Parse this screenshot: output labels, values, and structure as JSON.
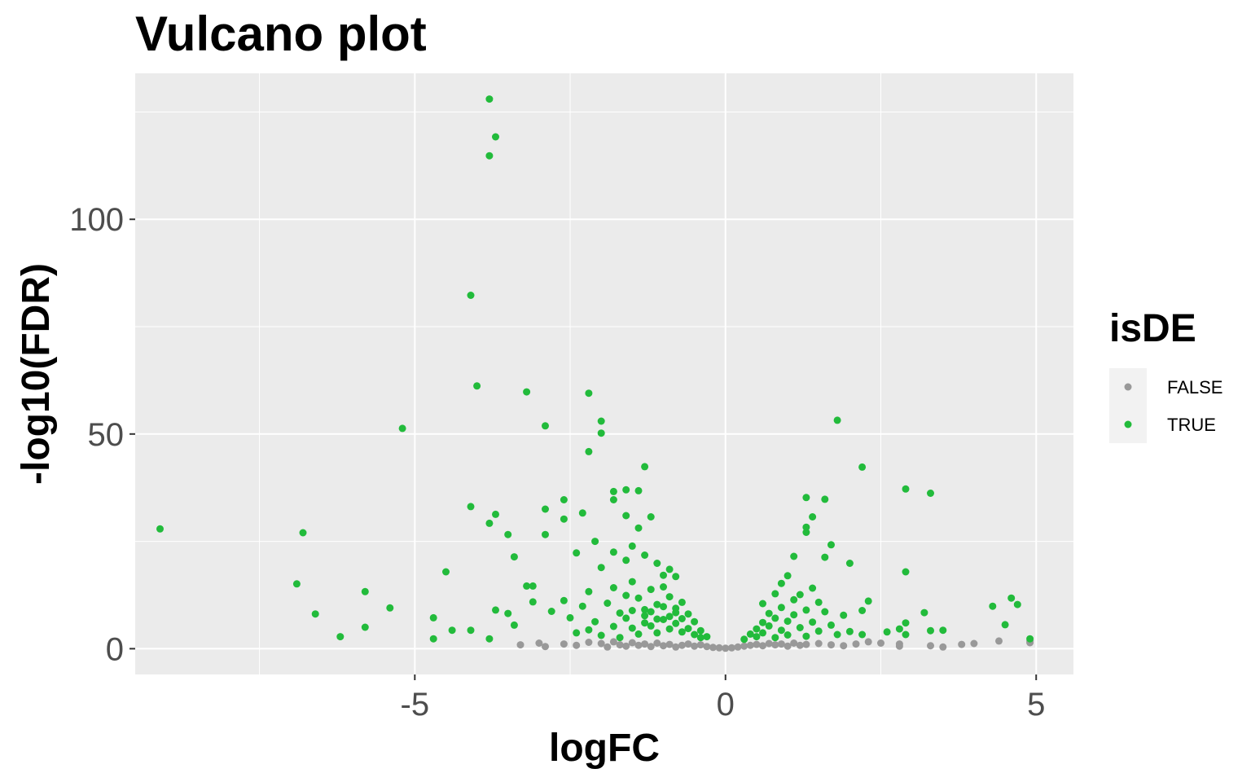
{
  "chart_data": {
    "type": "scatter",
    "title": "Vulcano plot",
    "xlabel": "logFC",
    "ylabel": "-log10(FDR)",
    "xlim": [
      -9.5,
      5.6
    ],
    "ylim": [
      -6,
      134
    ],
    "x_ticks": [
      -5,
      0,
      5
    ],
    "x_tick_labels": [
      "-5",
      "0",
      "5"
    ],
    "y_ticks": [
      0,
      50,
      100
    ],
    "y_tick_labels": [
      "0",
      "50",
      "100"
    ],
    "grid": true,
    "legend": {
      "title": "isDE",
      "placement": "right",
      "entries": [
        {
          "label": "FALSE",
          "color": "#999999"
        },
        {
          "label": "TRUE",
          "color": "#22bb3b"
        }
      ]
    },
    "colors": {
      "panel_background": "#ebebeb",
      "grid_major": "#ffffff",
      "false_points": "#999999",
      "true_points": "#22bb3b"
    },
    "series": [
      {
        "name": "FALSE",
        "color": "#999999",
        "points": [
          [
            -3.3,
            0.9
          ],
          [
            -3.0,
            1.3
          ],
          [
            -2.9,
            0.5
          ],
          [
            -2.6,
            1.1
          ],
          [
            -2.4,
            0.8
          ],
          [
            -2.2,
            1.5
          ],
          [
            -2.0,
            1.2
          ],
          [
            -1.9,
            0.4
          ],
          [
            -1.8,
            1.6
          ],
          [
            -1.7,
            0.9
          ],
          [
            -1.6,
            0.6
          ],
          [
            -1.5,
            1.4
          ],
          [
            -1.4,
            0.8
          ],
          [
            -1.3,
            1.1
          ],
          [
            -1.2,
            0.5
          ],
          [
            -1.1,
            1.3
          ],
          [
            -1.0,
            0.7
          ],
          [
            -0.9,
            1.0
          ],
          [
            -0.8,
            0.4
          ],
          [
            -0.7,
            0.8
          ],
          [
            -0.6,
            1.1
          ],
          [
            -0.5,
            0.6
          ],
          [
            -0.4,
            0.9
          ],
          [
            -0.3,
            0.5
          ],
          [
            -0.2,
            0.3
          ],
          [
            -0.1,
            0.2
          ],
          [
            0.0,
            0.1
          ],
          [
            0.1,
            0.2
          ],
          [
            0.2,
            0.4
          ],
          [
            0.3,
            0.6
          ],
          [
            0.4,
            0.8
          ],
          [
            0.5,
            1.0
          ],
          [
            0.6,
            0.7
          ],
          [
            0.7,
            1.2
          ],
          [
            0.8,
            0.9
          ],
          [
            0.9,
            1.1
          ],
          [
            1.0,
            0.6
          ],
          [
            1.1,
            1.3
          ],
          [
            1.2,
            0.8
          ],
          [
            1.3,
            1.0
          ],
          [
            1.5,
            1.2
          ],
          [
            1.7,
            0.9
          ],
          [
            1.9,
            0.7
          ],
          [
            2.1,
            1.1
          ],
          [
            2.3,
            1.6
          ],
          [
            2.5,
            1.3
          ],
          [
            2.8,
            0.6
          ],
          [
            2.8,
            1.1
          ],
          [
            3.3,
            0.7
          ],
          [
            3.5,
            0.4
          ],
          [
            3.8,
            1.0
          ],
          [
            4.0,
            1.2
          ],
          [
            4.4,
            1.8
          ],
          [
            4.9,
            1.8
          ],
          [
            4.9,
            1.4
          ]
        ]
      },
      {
        "name": "TRUE",
        "color": "#22bb3b",
        "points": [
          [
            -9.1,
            27.9
          ],
          [
            -6.8,
            27.0
          ],
          [
            -6.9,
            15.1
          ],
          [
            -6.6,
            8.1
          ],
          [
            -6.2,
            2.8
          ],
          [
            -5.8,
            5.0
          ],
          [
            -5.8,
            13.3
          ],
          [
            -5.4,
            9.5
          ],
          [
            -5.2,
            51.3
          ],
          [
            -4.7,
            2.3
          ],
          [
            -4.7,
            7.2
          ],
          [
            -4.5,
            17.9
          ],
          [
            -4.4,
            4.3
          ],
          [
            -4.1,
            82.3
          ],
          [
            -4.1,
            33.1
          ],
          [
            -4.0,
            61.2
          ],
          [
            -4.1,
            4.3
          ],
          [
            -3.8,
            128.0
          ],
          [
            -3.8,
            114.8
          ],
          [
            -3.8,
            29.2
          ],
          [
            -3.7,
            31.3
          ],
          [
            -3.7,
            119.2
          ],
          [
            -3.5,
            26.6
          ],
          [
            -3.4,
            21.4
          ],
          [
            -3.8,
            2.3
          ],
          [
            -3.7,
            9.0
          ],
          [
            -3.5,
            8.2
          ],
          [
            -3.4,
            5.5
          ],
          [
            -3.2,
            14.6
          ],
          [
            -3.1,
            10.9
          ],
          [
            -3.1,
            14.6
          ],
          [
            -3.2,
            59.8
          ],
          [
            -2.9,
            51.9
          ],
          [
            -2.9,
            26.6
          ],
          [
            -2.9,
            32.5
          ],
          [
            -2.6,
            34.7
          ],
          [
            -2.6,
            30.2
          ],
          [
            -2.2,
            59.5
          ],
          [
            -2.0,
            53.0
          ],
          [
            -2.0,
            50.2
          ],
          [
            -2.2,
            45.9
          ],
          [
            -1.8,
            36.6
          ],
          [
            -1.8,
            34.7
          ],
          [
            -1.6,
            37.0
          ],
          [
            -1.3,
            42.4
          ],
          [
            -1.4,
            36.8
          ],
          [
            -2.3,
            31.6
          ],
          [
            -2.1,
            25.0
          ],
          [
            -1.6,
            31.0
          ],
          [
            -1.4,
            28.1
          ],
          [
            -1.2,
            30.7
          ],
          [
            -2.4,
            22.3
          ],
          [
            -2.0,
            18.9
          ],
          [
            -1.8,
            22.5
          ],
          [
            -1.6,
            20.6
          ],
          [
            -1.5,
            23.9
          ],
          [
            -1.3,
            21.8
          ],
          [
            -1.1,
            19.9
          ],
          [
            -1.0,
            17.1
          ],
          [
            -0.9,
            18.5
          ],
          [
            -0.8,
            16.8
          ],
          [
            -2.8,
            8.7
          ],
          [
            -2.6,
            11.2
          ],
          [
            -2.5,
            7.2
          ],
          [
            -2.3,
            9.9
          ],
          [
            -2.2,
            13.3
          ],
          [
            -2.1,
            6.3
          ],
          [
            -1.9,
            10.6
          ],
          [
            -1.8,
            14.2
          ],
          [
            -1.7,
            8.3
          ],
          [
            -1.6,
            12.4
          ],
          [
            -1.5,
            15.6
          ],
          [
            -1.4,
            11.8
          ],
          [
            -1.3,
            9.1
          ],
          [
            -1.2,
            13.8
          ],
          [
            -1.1,
            10.3
          ],
          [
            -1.0,
            14.4
          ],
          [
            -0.9,
            12.1
          ],
          [
            -0.8,
            9.4
          ],
          [
            -0.7,
            10.8
          ],
          [
            -0.6,
            8.1
          ],
          [
            -0.5,
            6.3
          ],
          [
            -0.4,
            4.2
          ],
          [
            -0.3,
            2.8
          ],
          [
            -2.4,
            3.7
          ],
          [
            -2.2,
            4.4
          ],
          [
            -2.0,
            3.1
          ],
          [
            -1.8,
            5.2
          ],
          [
            -1.7,
            2.6
          ],
          [
            -1.5,
            4.8
          ],
          [
            -1.4,
            3.4
          ],
          [
            -1.3,
            6.0
          ],
          [
            -1.2,
            5.3
          ],
          [
            -1.1,
            3.7
          ],
          [
            -1.0,
            6.8
          ],
          [
            -0.9,
            4.6
          ],
          [
            -0.8,
            5.9
          ],
          [
            -0.7,
            3.9
          ],
          [
            -0.6,
            4.7
          ],
          [
            -0.5,
            3.3
          ],
          [
            -0.4,
            2.6
          ],
          [
            -1.6,
            7.1
          ],
          [
            -1.5,
            8.9
          ],
          [
            -1.3,
            7.7
          ],
          [
            -1.2,
            8.6
          ],
          [
            -1.1,
            6.9
          ],
          [
            -1.0,
            9.8
          ],
          [
            -0.9,
            7.5
          ],
          [
            -0.8,
            8.4
          ],
          [
            -0.7,
            7.0
          ],
          [
            0.3,
            2.2
          ],
          [
            0.4,
            3.4
          ],
          [
            0.5,
            4.6
          ],
          [
            0.5,
            2.8
          ],
          [
            0.6,
            6.1
          ],
          [
            0.6,
            3.7
          ],
          [
            0.7,
            8.2
          ],
          [
            0.7,
            5.3
          ],
          [
            0.8,
            2.6
          ],
          [
            0.8,
            7.1
          ],
          [
            0.9,
            4.3
          ],
          [
            0.9,
            9.6
          ],
          [
            1.0,
            6.4
          ],
          [
            1.0,
            3.2
          ],
          [
            1.1,
            11.4
          ],
          [
            1.1,
            7.9
          ],
          [
            1.2,
            4.9
          ],
          [
            1.2,
            12.6
          ],
          [
            1.3,
            9.0
          ],
          [
            1.3,
            2.9
          ],
          [
            1.4,
            6.2
          ],
          [
            1.4,
            14.1
          ],
          [
            1.5,
            10.8
          ],
          [
            1.5,
            4.1
          ],
          [
            1.6,
            21.3
          ],
          [
            1.6,
            8.6
          ],
          [
            1.7,
            24.2
          ],
          [
            1.7,
            5.5
          ],
          [
            1.8,
            3.3
          ],
          [
            1.9,
            7.8
          ],
          [
            2.0,
            19.9
          ],
          [
            2.0,
            4.0
          ],
          [
            2.2,
            8.9
          ],
          [
            2.3,
            11.1
          ],
          [
            2.2,
            3.3
          ],
          [
            1.8,
            53.2
          ],
          [
            2.2,
            42.3
          ],
          [
            1.3,
            35.2
          ],
          [
            1.6,
            34.8
          ],
          [
            1.4,
            30.7
          ],
          [
            1.3,
            28.3
          ],
          [
            1.3,
            27.1
          ],
          [
            1.0,
            17.0
          ],
          [
            1.1,
            21.5
          ],
          [
            0.9,
            15.2
          ],
          [
            0.6,
            10.5
          ],
          [
            0.8,
            12.8
          ],
          [
            2.9,
            37.2
          ],
          [
            3.3,
            36.2
          ],
          [
            2.9,
            17.9
          ],
          [
            3.2,
            8.4
          ],
          [
            2.9,
            6.0
          ],
          [
            2.8,
            4.6
          ],
          [
            2.9,
            3.3
          ],
          [
            3.3,
            4.2
          ],
          [
            3.5,
            4.3
          ],
          [
            2.6,
            3.9
          ],
          [
            4.3,
            9.9
          ],
          [
            4.6,
            11.8
          ],
          [
            4.7,
            10.3
          ],
          [
            4.5,
            5.6
          ],
          [
            4.9,
            2.3
          ]
        ]
      }
    ]
  }
}
